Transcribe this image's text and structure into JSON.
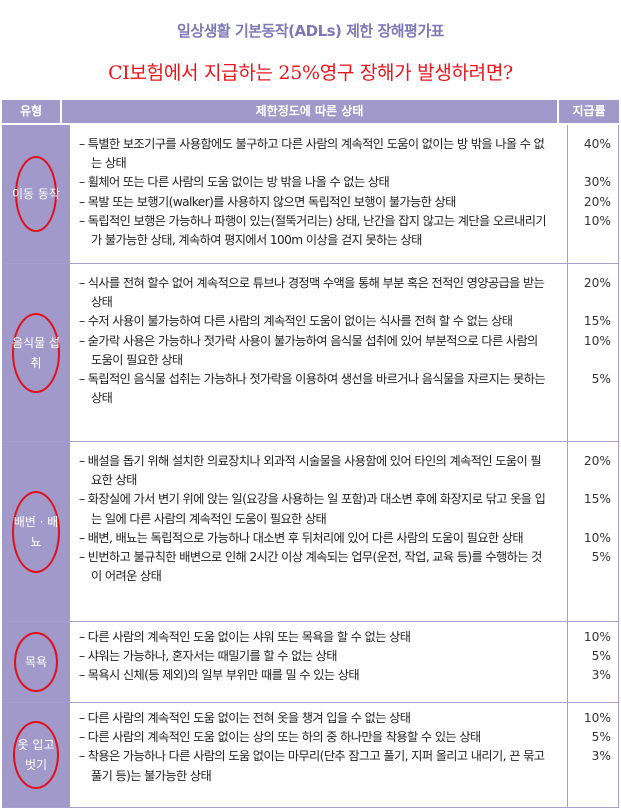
{
  "title": "일상생활 기본동작(ADLs) 제한 장해평가표",
  "subtitle": "CI보험에서 지급하는 25%영구 장해가 발생하려면?",
  "headers": {
    "type": "유형",
    "state": "제한정도에 따른 상태",
    "rate": "지급률"
  },
  "colors": {
    "header": "#a099c9",
    "title": "#7f78b6",
    "subtitle": "#e8151d",
    "circle": "#e0101a"
  },
  "rows": [
    {
      "type": "이동 동작",
      "items": [
        {
          "text": "– 특별한 보조기구를 사용함에도 불구하고 다른 사람의 계속적인 도움이 없이는 방 밖을 나올 수 없는 상태",
          "rate": "40%"
        },
        {
          "text": "– 휠체어 또는 다른 사람의 도움 없이는 방 밖을 나올 수 없는 상태",
          "rate": "30%"
        },
        {
          "text": "– 목발 또는 보행기(walker)를 사용하지 않으면 독립적인 보행이 불가능한 상태",
          "rate": "20%"
        },
        {
          "text": "– 독립적인 보행은 가능하나 파행이 있는(절뚝거리는) 상태, 난간을 잡지 않고는 계단을 오르내리기가 불가능한 상태, 계속하여 평지에서 100m 이상을 걷지 못하는 상태",
          "rate": "10%"
        }
      ]
    },
    {
      "type": "음식물 섭취",
      "items": [
        {
          "text": "– 식사를 전혀 할수 없어 계속적으로 튜브나 경정맥 수액을 통해 부분 혹은 전적인 영양공급을 받는 상태",
          "rate": "20%"
        },
        {
          "text": "– 수저 사용이 불가능하여 다른 사람의 계속적인 도움이 없이는 식사를 전혀 할 수 없는 상태",
          "rate": "15%"
        },
        {
          "text": "– 숟가락 사용은 가능하나 젓가락 사용이 불가능하여 음식물 섭취에 있어 부분적으로 다른 사람의 도움이 필요한 상태",
          "rate": "10%"
        },
        {
          "text": "– 독립적인 음식물 섭취는 가능하나 젓가락을 이용하여 생선을 바르거나 음식물을 자르지는 못하는 상태",
          "rate": "5%"
        }
      ]
    },
    {
      "type": "배변 · 배뇨",
      "items": [
        {
          "text": "– 배설을 돕기 위해 설치한 의료장치나 외과적 시술물을 사용함에 있어 타인의 계속적인 도움이 필요한 상태",
          "rate": "20%"
        },
        {
          "text": "– 화장실에 가서 변기 위에 앉는 일(요강을 사용하는 일 포함)과 대소변 후에 화장지로 닦고 옷을 입는 일에 다른 사람의 계속적인 도움이 필요한 상태",
          "rate": "15%"
        },
        {
          "text": "– 배변, 배뇨는 독립적으로 가능하나 대소변 후 뒤처리에 있어 다른 사람의 도움이 필요한 상태",
          "rate": "10%"
        },
        {
          "text": "– 빈번하고 불규칙한 배변으로 인해 2시간 이상 계속되는 업무(운전, 작업, 교육 등)를 수행하는 것이 어려운 상태",
          "rate": "5%"
        }
      ]
    },
    {
      "type": "목욕",
      "items": [
        {
          "text": "– 다른 사람의 계속적인 도움 없이는 샤워 또는 목욕을 할 수 없는 상태",
          "rate": "10%"
        },
        {
          "text": "– 샤워는 가능하나, 혼자서는 때밀기를 할 수 없는 상태",
          "rate": "5%"
        },
        {
          "text": "– 목욕시 신체(등 제외)의 일부 부위만 때를 밀 수 있는 상태",
          "rate": "3%"
        }
      ]
    },
    {
      "type": "옷 입고 벗기",
      "items": [
        {
          "text": "– 다른 사람의 계속적인 도움 없이는 전혀 옷을 챙겨 입을 수 없는 상태",
          "rate": "10%"
        },
        {
          "text": "– 다른 사람의 계속적인 도움 없이는 상의 또는 하의 중 하나만을 착용할 수 있는 상태",
          "rate": "5%"
        },
        {
          "text": "– 착용은 가능하나 다른 사람의 도움 없이는 마무리(단추 잠그고 풀기, 지퍼 올리고 내리기, 끈 묶고 풀기 등)는 불가능한 상태",
          "rate": "3%"
        }
      ]
    }
  ]
}
